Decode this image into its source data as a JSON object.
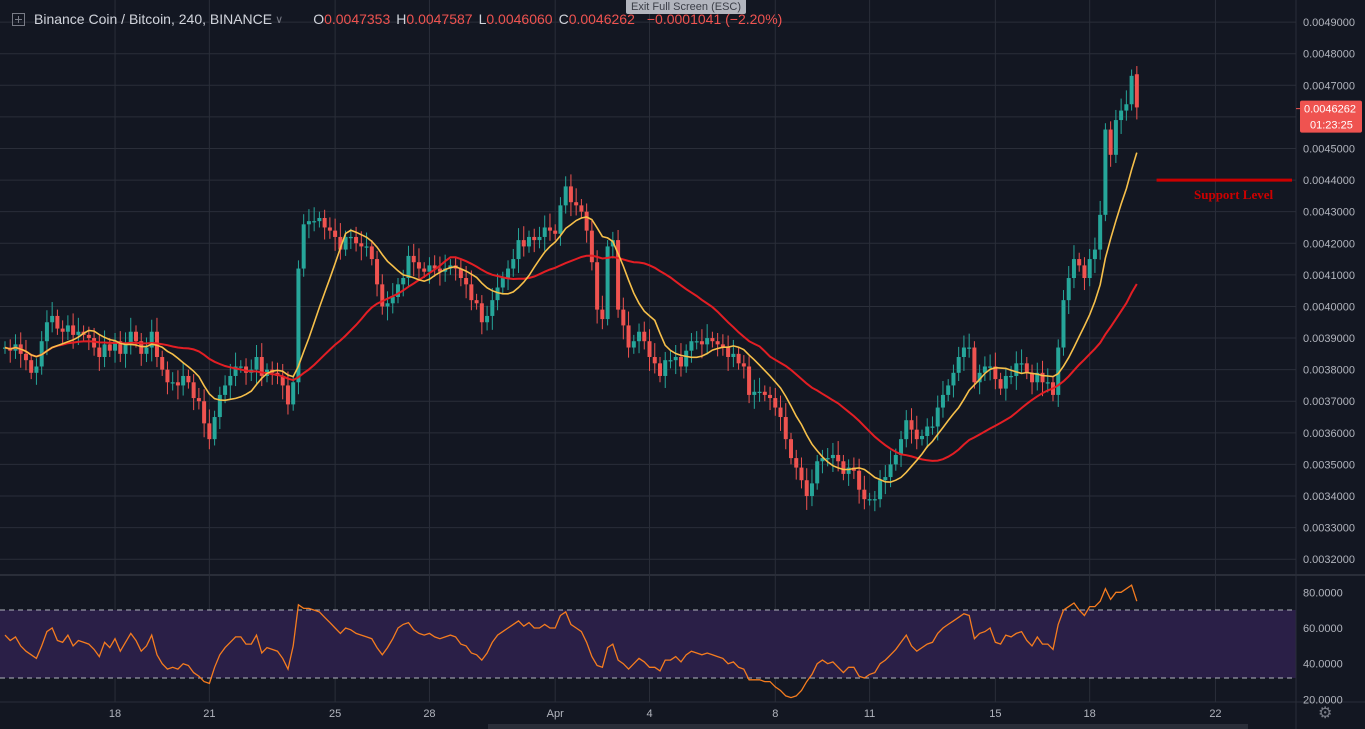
{
  "header": {
    "title": "Binance Coin / Bitcoin, 240, BINANCE",
    "o_label": "O",
    "o_value": "0.0047353",
    "h_label": "H",
    "h_value": "0.0047587",
    "l_label": "L",
    "l_value": "0.0046060",
    "c_label": "C",
    "c_value": "0.0046262",
    "change": "−0.0001041 (−2.20%)"
  },
  "toolbar": {
    "exit_fullscreen": "Exit Full Screen (ESC)"
  },
  "colors": {
    "background": "#131722",
    "up": "#26a69a",
    "down": "#ef5350",
    "ma_fast": "#f7c04a",
    "ma_slow": "#e31e24",
    "rsi_line": "#f57c1f",
    "rsi_band": "#2a1f47",
    "support": "#cc0000"
  },
  "chart_data": [
    {
      "type": "candlestick",
      "title": "Binance Coin / Bitcoin, 240, BINANCE",
      "ylim": [
        0.00315,
        0.00497
      ],
      "y_ticks": [
        "0.0032000",
        "0.0033000",
        "0.0034000",
        "0.0035000",
        "0.0036000",
        "0.0037000",
        "0.0038000",
        "0.0039000",
        "0.0040000",
        "0.0041000",
        "0.0042000",
        "0.0043000",
        "0.0044000",
        "0.0045000",
        "0.0046000",
        "0.0047000",
        "0.0048000",
        "0.0049000"
      ],
      "x_ticks": [
        {
          "label": "18",
          "index": 21
        },
        {
          "label": "21",
          "index": 39
        },
        {
          "label": "25",
          "index": 63
        },
        {
          "label": "28",
          "index": 81
        },
        {
          "label": "Apr",
          "index": 105
        },
        {
          "label": "4",
          "index": 123
        },
        {
          "label": "8",
          "index": 147
        },
        {
          "label": "11",
          "index": 165
        },
        {
          "label": "15",
          "index": 189
        },
        {
          "label": "18",
          "index": 207
        },
        {
          "label": "22",
          "index": 231
        }
      ],
      "price_label": "0.0046262",
      "countdown_label": "01:23:25",
      "support": {
        "value": 0.0044,
        "label": "Support Level",
        "from_index": 219
      },
      "series": [
        {
          "kind": "close",
          "values": [
            0.00387,
            0.00386,
            0.00388,
            0.00385,
            0.00383,
            0.00379,
            0.00381,
            0.00389,
            0.00395,
            0.00397,
            0.00393,
            0.00392,
            0.00394,
            0.00391,
            0.00392,
            0.00391,
            0.0039,
            0.00387,
            0.00384,
            0.00388,
            0.00386,
            0.00389,
            0.00385,
            0.00388,
            0.00392,
            0.00389,
            0.00385,
            0.00387,
            0.00392,
            0.00384,
            0.0038,
            0.00376,
            0.00376,
            0.00375,
            0.00378,
            0.00376,
            0.00371,
            0.0037,
            0.00363,
            0.00358,
            0.00365,
            0.00372,
            0.00375,
            0.00378,
            0.00381,
            0.00381,
            0.00379,
            0.0038,
            0.00384,
            0.00378,
            0.0038,
            0.00379,
            0.00378,
            0.00375,
            0.00369,
            0.00376,
            0.00412,
            0.00426,
            0.00427,
            0.00427,
            0.00428,
            0.00425,
            0.00424,
            0.00422,
            0.00418,
            0.00422,
            0.00422,
            0.0042,
            0.00419,
            0.00419,
            0.00415,
            0.00407,
            0.004,
            0.00401,
            0.00403,
            0.00407,
            0.00409,
            0.00416,
            0.00414,
            0.00412,
            0.00411,
            0.00413,
            0.00412,
            0.00411,
            0.00412,
            0.00413,
            0.00412,
            0.00409,
            0.00407,
            0.00402,
            0.00401,
            0.00395,
            0.00397,
            0.00402,
            0.00406,
            0.00409,
            0.00412,
            0.00415,
            0.00421,
            0.00419,
            0.00422,
            0.00421,
            0.00422,
            0.00425,
            0.00424,
            0.00423,
            0.00432,
            0.00438,
            0.00433,
            0.00432,
            0.0043,
            0.00424,
            0.00414,
            0.00399,
            0.00396,
            0.00419,
            0.00421,
            0.00399,
            0.00394,
            0.00387,
            0.00389,
            0.00392,
            0.00389,
            0.00384,
            0.00382,
            0.00378,
            0.00383,
            0.00383,
            0.00384,
            0.00381,
            0.00386,
            0.00389,
            0.00389,
            0.00388,
            0.0039,
            0.00389,
            0.00388,
            0.00387,
            0.00384,
            0.00385,
            0.00382,
            0.00381,
            0.00372,
            0.00373,
            0.00373,
            0.00372,
            0.00371,
            0.00368,
            0.00365,
            0.00358,
            0.00352,
            0.00349,
            0.00345,
            0.0034,
            0.00344,
            0.00351,
            0.00352,
            0.00352,
            0.00353,
            0.00351,
            0.00347,
            0.00349,
            0.00348,
            0.00342,
            0.00339,
            0.00339,
            0.00339,
            0.00345,
            0.00346,
            0.0035,
            0.00353,
            0.00358,
            0.00364,
            0.00361,
            0.00358,
            0.00359,
            0.00362,
            0.00362,
            0.00368,
            0.00372,
            0.00375,
            0.00379,
            0.00384,
            0.00387,
            0.00387,
            0.00376,
            0.00379,
            0.00381,
            0.00381,
            0.00377,
            0.00374,
            0.00378,
            0.00378,
            0.00382,
            0.00382,
            0.00379,
            0.00376,
            0.00379,
            0.00376,
            0.00376,
            0.00372,
            0.00387,
            0.00402,
            0.00409,
            0.00415,
            0.00413,
            0.00409,
            0.00415,
            0.00418,
            0.00429,
            0.00456,
            0.00448,
            0.00459,
            0.00462,
            0.00464,
            0.00473,
            0.00463
          ]
        },
        {
          "kind": "open",
          "values": [
            0.00387,
            0.00387,
            0.00386,
            0.00388,
            0.00385,
            0.00383,
            0.00379,
            0.00381,
            0.00389,
            0.00395,
            0.00397,
            0.00393,
            0.00392,
            0.00394,
            0.00391,
            0.00392,
            0.00391,
            0.0039,
            0.00387,
            0.00384,
            0.00388,
            0.00386,
            0.00389,
            0.00385,
            0.00388,
            0.00392,
            0.00389,
            0.00385,
            0.00387,
            0.00392,
            0.00384,
            0.0038,
            0.00376,
            0.00376,
            0.00375,
            0.00378,
            0.00376,
            0.00371,
            0.0037,
            0.00363,
            0.00358,
            0.00365,
            0.00372,
            0.00375,
            0.00378,
            0.00381,
            0.00381,
            0.00379,
            0.0038,
            0.00384,
            0.00378,
            0.0038,
            0.00379,
            0.00378,
            0.00375,
            0.00369,
            0.00376,
            0.00412,
            0.00426,
            0.00427,
            0.00427,
            0.00428,
            0.00425,
            0.00424,
            0.00422,
            0.00418,
            0.00422,
            0.00422,
            0.0042,
            0.00419,
            0.00419,
            0.00415,
            0.00407,
            0.004,
            0.00401,
            0.00403,
            0.00407,
            0.00409,
            0.00416,
            0.00414,
            0.00412,
            0.00411,
            0.00413,
            0.00412,
            0.00411,
            0.00412,
            0.00413,
            0.00412,
            0.00409,
            0.00407,
            0.00402,
            0.00401,
            0.00395,
            0.00397,
            0.00402,
            0.00406,
            0.00409,
            0.00412,
            0.00415,
            0.00421,
            0.00419,
            0.00422,
            0.00421,
            0.00422,
            0.00425,
            0.00424,
            0.00423,
            0.00432,
            0.00438,
            0.00433,
            0.00432,
            0.0043,
            0.00424,
            0.00414,
            0.00399,
            0.00396,
            0.00419,
            0.00421,
            0.00399,
            0.00394,
            0.00387,
            0.00389,
            0.00392,
            0.00389,
            0.00384,
            0.00382,
            0.00378,
            0.00383,
            0.00383,
            0.00384,
            0.00381,
            0.00386,
            0.00389,
            0.00389,
            0.00388,
            0.0039,
            0.00389,
            0.00388,
            0.00387,
            0.00384,
            0.00385,
            0.00382,
            0.00381,
            0.00372,
            0.00373,
            0.00373,
            0.00372,
            0.00371,
            0.00368,
            0.00365,
            0.00358,
            0.00352,
            0.00349,
            0.00345,
            0.0034,
            0.00344,
            0.00351,
            0.00352,
            0.00352,
            0.00353,
            0.00351,
            0.00347,
            0.00349,
            0.00348,
            0.00342,
            0.00339,
            0.00339,
            0.00339,
            0.00345,
            0.00346,
            0.0035,
            0.00353,
            0.00358,
            0.00364,
            0.00361,
            0.00358,
            0.00359,
            0.00362,
            0.00362,
            0.00368,
            0.00372,
            0.00375,
            0.00379,
            0.00384,
            0.00387,
            0.00387,
            0.00376,
            0.00379,
            0.00381,
            0.00381,
            0.00377,
            0.00374,
            0.00378,
            0.00378,
            0.00382,
            0.00382,
            0.00379,
            0.00376,
            0.00379,
            0.00376,
            0.00376,
            0.00372,
            0.00387,
            0.00402,
            0.00409,
            0.00415,
            0.00413,
            0.00409,
            0.00415,
            0.00418,
            0.00429,
            0.00456,
            0.00448,
            0.00459,
            0.00462,
            0.00464,
            0.004735
          ]
        }
      ]
    },
    {
      "type": "line",
      "title": "",
      "ylim": [
        18,
        88
      ],
      "y_ticks": [
        "20.0000",
        "40.0000",
        "60.0000",
        "80.0000"
      ],
      "bands": [
        30,
        70
      ],
      "values": [
        56,
        53,
        55,
        50,
        47,
        45,
        43,
        50,
        58,
        60,
        53,
        52,
        56,
        50,
        53,
        52,
        51,
        48,
        44,
        52,
        49,
        54,
        47,
        52,
        57,
        53,
        47,
        50,
        56,
        45,
        40,
        37,
        38,
        37,
        40,
        39,
        35,
        33,
        30,
        29,
        38,
        45,
        49,
        52,
        55,
        55,
        51,
        51,
        56,
        46,
        49,
        48,
        47,
        43,
        37,
        50,
        73,
        71,
        71,
        70,
        69,
        66,
        63,
        60,
        57,
        60,
        59,
        57,
        56,
        55,
        54,
        49,
        45,
        49,
        54,
        60,
        62,
        63,
        59,
        57,
        56,
        57,
        55,
        54,
        55,
        56,
        55,
        51,
        50,
        46,
        45,
        42,
        46,
        52,
        56,
        58,
        60,
        62,
        64,
        61,
        63,
        60,
        60,
        62,
        60,
        60,
        67,
        69,
        62,
        60,
        58,
        52,
        44,
        39,
        38,
        49,
        51,
        42,
        40,
        37,
        40,
        43,
        41,
        38,
        38,
        36,
        42,
        42,
        44,
        41,
        45,
        47,
        46,
        45,
        46,
        45,
        44,
        43,
        40,
        41,
        38,
        37,
        31,
        31,
        31,
        30,
        30,
        27,
        25,
        22,
        21,
        22,
        25,
        30,
        34,
        40,
        42,
        40,
        41,
        38,
        35,
        38,
        38,
        33,
        32,
        34,
        35,
        40,
        42,
        45,
        48,
        52,
        56,
        50,
        47,
        49,
        51,
        52,
        57,
        60,
        62,
        64,
        66,
        68,
        67,
        54,
        57,
        58,
        60,
        52,
        51,
        56,
        55,
        57,
        58,
        53,
        50,
        55,
        51,
        51,
        48,
        62,
        70,
        72,
        74,
        70,
        67,
        72,
        72,
        75,
        82,
        76,
        80,
        80,
        82,
        84,
        75
      ]
    }
  ]
}
